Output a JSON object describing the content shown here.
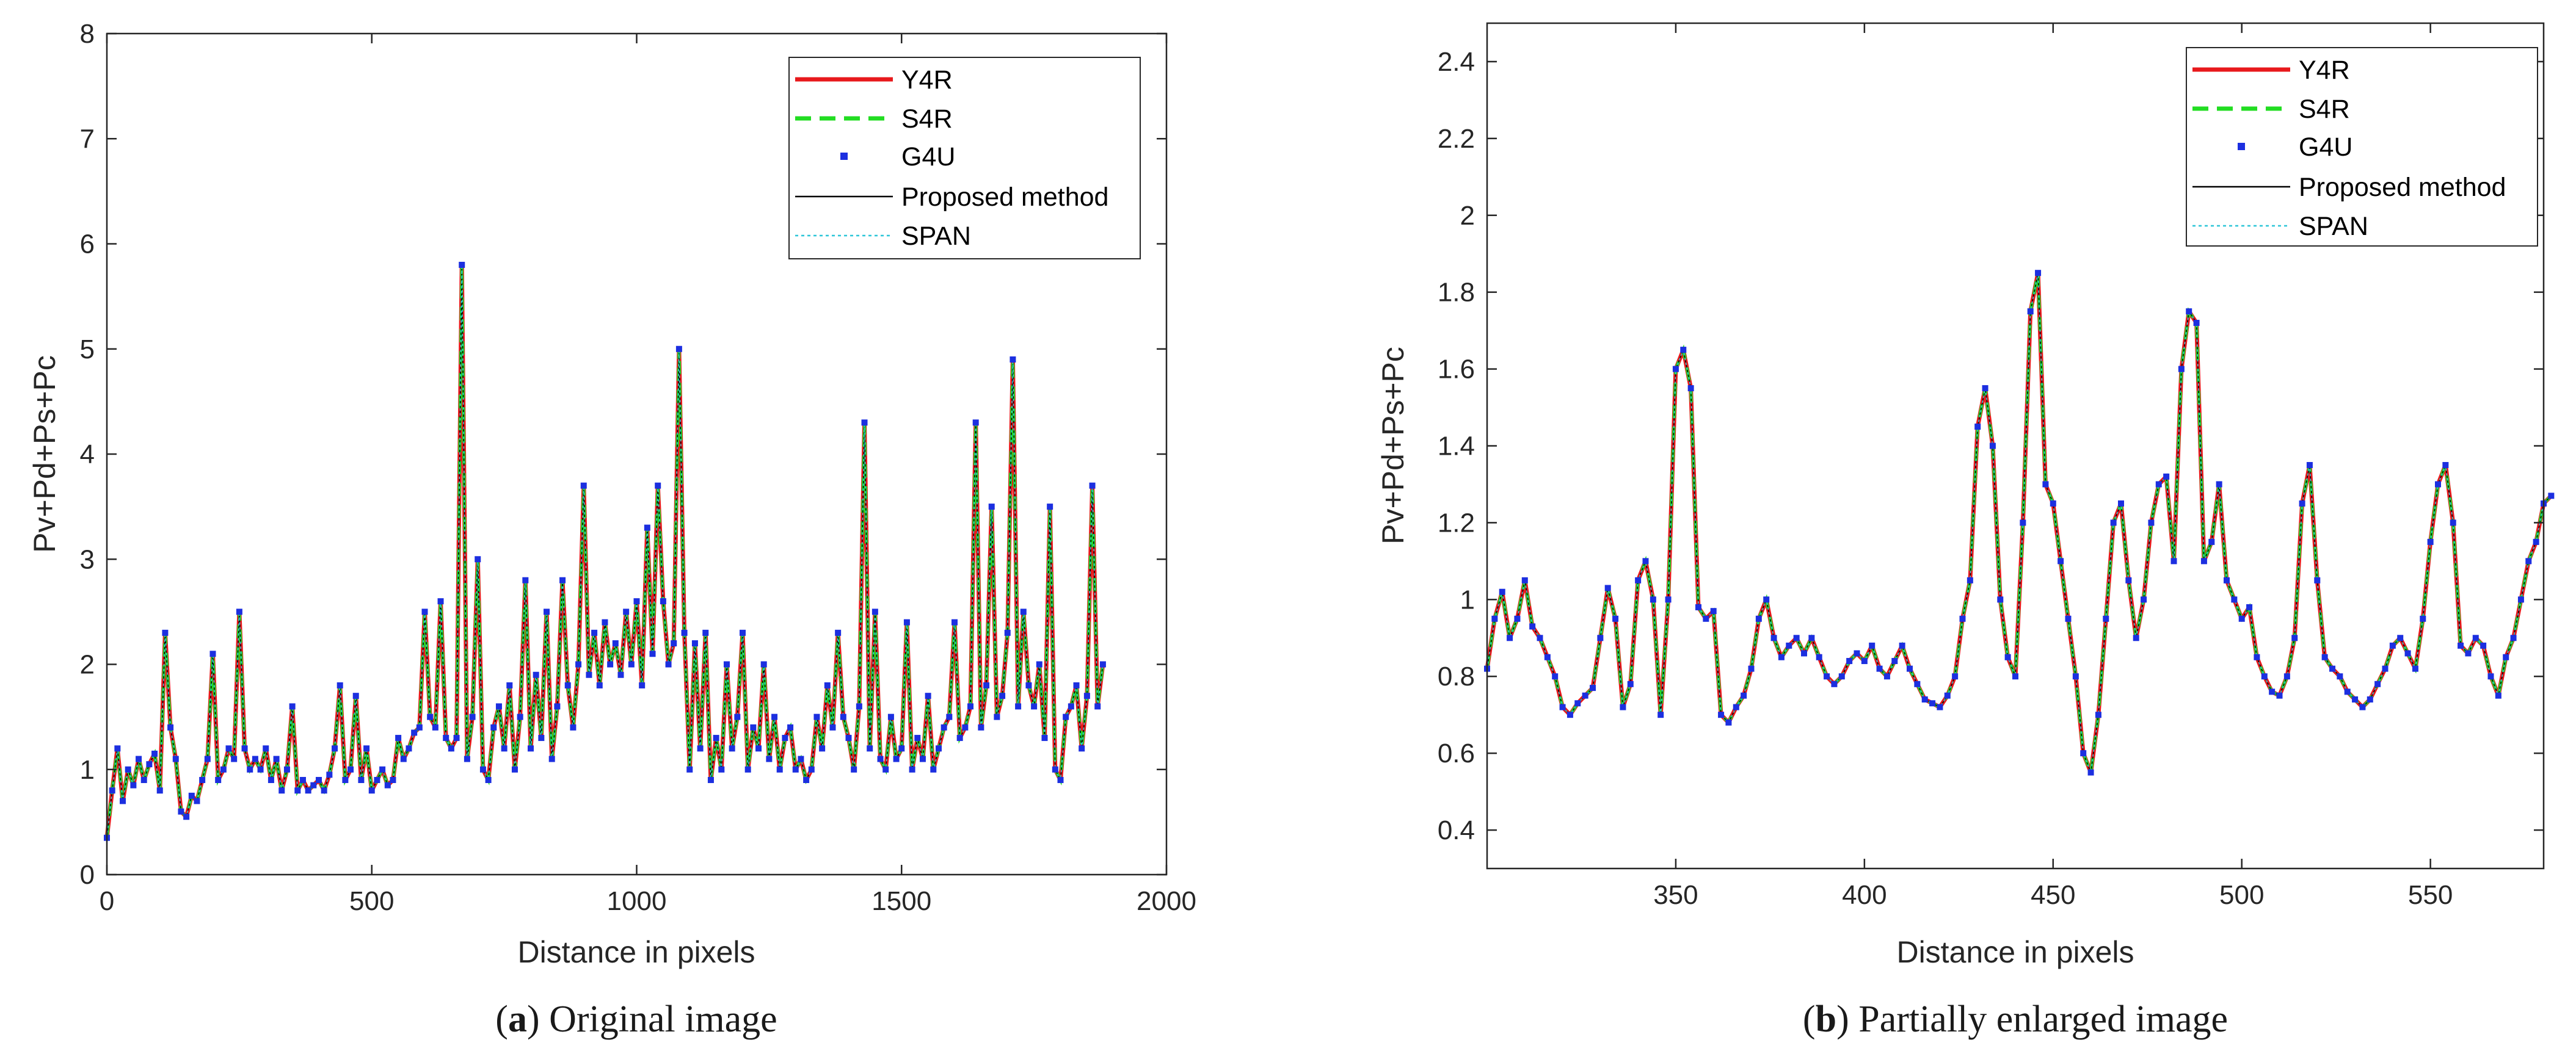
{
  "colors": {
    "y4r": "#e8191c",
    "s4r": "#22dd22",
    "g4u": "#1c2fe0",
    "proposed": "#000000",
    "span": "#2ec6d8",
    "axis": "#262626"
  },
  "chart_data": [
    {
      "type": "line",
      "panel": "a",
      "caption_prefix": "(",
      "caption_letter": "a",
      "caption_rest": ") Original image",
      "xlabel": "Distance in pixels",
      "ylabel": "Pv+Pd+Ps+Pc",
      "xlim": [
        0,
        2000
      ],
      "ylim": [
        0,
        8
      ],
      "xticks": [
        "0",
        "500",
        "1000",
        "1500",
        "2000"
      ],
      "yticks": [
        "0",
        "1",
        "2",
        "3",
        "4",
        "5",
        "6",
        "7",
        "8"
      ],
      "x_step": 10,
      "legend": [
        "Y4R",
        "S4R",
        "G4U",
        "Proposed method",
        "SPAN"
      ],
      "legend_position": "top-right",
      "series_values": [
        0.35,
        0.8,
        1.2,
        0.7,
        1.0,
        0.85,
        1.1,
        0.9,
        1.05,
        1.15,
        0.8,
        2.3,
        1.4,
        1.1,
        0.6,
        0.55,
        0.75,
        0.7,
        0.9,
        1.1,
        2.1,
        0.9,
        1.0,
        1.2,
        1.1,
        2.5,
        1.2,
        1.0,
        1.1,
        1.0,
        1.2,
        0.9,
        1.1,
        0.8,
        1.0,
        1.6,
        0.8,
        0.9,
        0.8,
        0.85,
        0.9,
        0.8,
        0.95,
        1.2,
        1.8,
        0.9,
        1.0,
        1.7,
        0.9,
        1.2,
        0.8,
        0.9,
        1.0,
        0.85,
        0.9,
        1.3,
        1.1,
        1.2,
        1.35,
        1.4,
        2.5,
        1.5,
        1.4,
        2.6,
        1.3,
        1.2,
        1.3,
        5.8,
        1.1,
        1.5,
        3.0,
        1.0,
        0.9,
        1.4,
        1.6,
        1.2,
        1.8,
        1.0,
        1.5,
        2.8,
        1.2,
        1.9,
        1.3,
        2.5,
        1.1,
        1.6,
        2.8,
        1.8,
        1.4,
        2.0,
        3.7,
        1.9,
        2.3,
        1.8,
        2.4,
        2.0,
        2.2,
        1.9,
        2.5,
        2.0,
        2.6,
        1.8,
        3.3,
        2.1,
        3.7,
        2.6,
        2.0,
        2.2,
        5.0,
        2.3,
        1.0,
        2.2,
        1.2,
        2.3,
        0.9,
        1.3,
        1.0,
        2.0,
        1.2,
        1.5,
        2.3,
        1.0,
        1.4,
        1.2,
        2.0,
        1.1,
        1.5,
        1.0,
        1.3,
        1.4,
        1.0,
        1.1,
        0.9,
        1.0,
        1.5,
        1.2,
        1.8,
        1.4,
        2.3,
        1.5,
        1.3,
        1.0,
        1.6,
        4.3,
        1.2,
        2.5,
        1.1,
        1.0,
        1.5,
        1.1,
        1.2,
        2.4,
        1.0,
        1.3,
        1.1,
        1.7,
        1.0,
        1.2,
        1.4,
        1.5,
        2.4,
        1.3,
        1.4,
        1.6,
        4.3,
        1.4,
        1.8,
        3.5,
        1.5,
        1.7,
        2.3,
        4.9,
        1.6,
        2.5,
        1.8,
        1.6,
        2.0,
        1.3,
        3.5,
        1.0,
        0.9,
        1.5,
        1.6,
        1.8,
        1.2,
        1.7,
        3.7,
        1.6,
        2.0
      ]
    },
    {
      "type": "line",
      "panel": "b",
      "caption_prefix": "(",
      "caption_letter": "b",
      "caption_rest": ") Partially enlarged image",
      "xlabel": "Distance in pixels",
      "ylabel": "Pv+Pd+Ps+Pc",
      "xlim": [
        300,
        580
      ],
      "ylim": [
        0.3,
        2.5
      ],
      "xticks": [
        "350",
        "400",
        "450",
        "500",
        "550"
      ],
      "yticks": [
        "0.4",
        "0.6",
        "0.8",
        "1",
        "1.2",
        "1.4",
        "1.6",
        "1.8",
        "2",
        "2.2",
        "2.4"
      ],
      "x_step": 2,
      "legend": [
        "Y4R",
        "S4R",
        "G4U",
        "Proposed method",
        "SPAN"
      ],
      "legend_position": "top-right",
      "series_values": [
        0.82,
        0.95,
        1.02,
        0.9,
        0.95,
        1.05,
        0.93,
        0.9,
        0.85,
        0.8,
        0.72,
        0.7,
        0.73,
        0.75,
        0.77,
        0.9,
        1.03,
        0.95,
        0.72,
        0.78,
        1.05,
        1.1,
        1.0,
        0.7,
        1.0,
        1.6,
        1.65,
        1.55,
        0.98,
        0.95,
        0.97,
        0.7,
        0.68,
        0.72,
        0.75,
        0.82,
        0.95,
        1.0,
        0.9,
        0.85,
        0.88,
        0.9,
        0.86,
        0.9,
        0.85,
        0.8,
        0.78,
        0.8,
        0.84,
        0.86,
        0.84,
        0.88,
        0.82,
        0.8,
        0.84,
        0.88,
        0.82,
        0.78,
        0.74,
        0.73,
        0.72,
        0.75,
        0.8,
        0.95,
        1.05,
        1.45,
        1.55,
        1.4,
        1.0,
        0.85,
        0.8,
        1.2,
        1.75,
        1.85,
        1.3,
        1.25,
        1.1,
        0.95,
        0.8,
        0.6,
        0.55,
        0.7,
        0.95,
        1.2,
        1.25,
        1.05,
        0.9,
        1.0,
        1.2,
        1.3,
        1.32,
        1.1,
        1.6,
        1.75,
        1.72,
        1.1,
        1.15,
        1.3,
        1.05,
        1.0,
        0.95,
        0.98,
        0.85,
        0.8,
        0.76,
        0.75,
        0.8,
        0.9,
        1.25,
        1.35,
        1.05,
        0.85,
        0.82,
        0.8,
        0.76,
        0.74,
        0.72,
        0.74,
        0.78,
        0.82,
        0.88,
        0.9,
        0.86,
        0.82,
        0.95,
        1.15,
        1.3,
        1.35,
        1.2,
        0.88,
        0.86,
        0.9,
        0.88,
        0.8,
        0.75,
        0.85,
        0.9,
        1.0,
        1.1,
        1.15,
        1.25,
        1.27
      ]
    }
  ]
}
